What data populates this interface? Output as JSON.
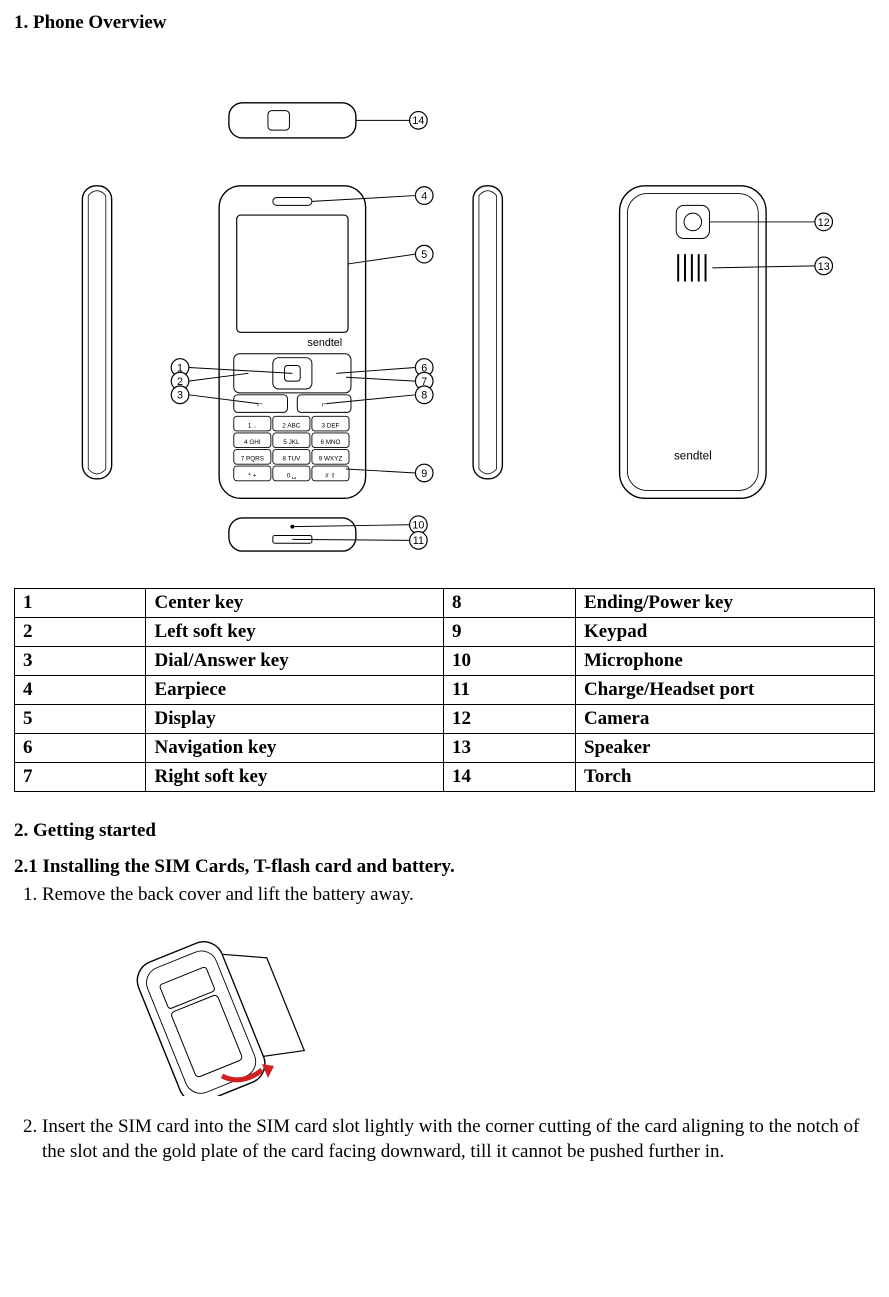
{
  "sections": {
    "s1_title": "1. Phone Overview",
    "s2_title": "2. Getting started",
    "s2_1_title": "2.1 Installing the SIM Cards, T-flash card and battery."
  },
  "parts_table": {
    "columns": [
      "num_a",
      "label_a",
      "num_b",
      "label_b"
    ],
    "rows": [
      [
        "1",
        "Center key",
        "8",
        "Ending/Power key"
      ],
      [
        "2",
        "Left soft key",
        "9",
        "Keypad"
      ],
      [
        "3",
        "Dial/Answer key",
        "10",
        "Microphone"
      ],
      [
        "4",
        "Earpiece",
        "11",
        "Charge/Headset port"
      ],
      [
        "5",
        "Display",
        "12",
        "Camera"
      ],
      [
        "6",
        "Navigation key",
        "13",
        "Speaker"
      ],
      [
        "7",
        "Right soft key",
        "14",
        "Torch"
      ]
    ]
  },
  "steps": {
    "s1": "Remove the back cover and lift the battery away.",
    "s2": "Insert the SIM card into the SIM card slot lightly with the corner cutting of the card aligning to the notch of the slot and the gold plate of the card facing downward, till it cannot be pushed further in."
  },
  "diagram": {
    "brand": "sendtel",
    "keypad": [
      [
        "1 ..",
        "2 ABC",
        "3 DEF"
      ],
      [
        "4 GHI",
        "5 JKL",
        "6 MNO"
      ],
      [
        "7 PQRS",
        "8 TUV",
        "9 WXYZ"
      ],
      [
        "* +",
        "0 ␣",
        "# ⇧"
      ]
    ],
    "callouts_left": [
      1,
      2,
      3
    ],
    "callouts_right_front": [
      4,
      5,
      6,
      7,
      8,
      9
    ],
    "callouts_bottom": [
      10,
      11
    ],
    "callouts_top": [
      14
    ],
    "callouts_back": [
      12,
      13
    ],
    "colors": {
      "stroke": "#000000",
      "bg": "#ffffff",
      "arrow": "#d22020"
    },
    "line_width": 1.4
  }
}
